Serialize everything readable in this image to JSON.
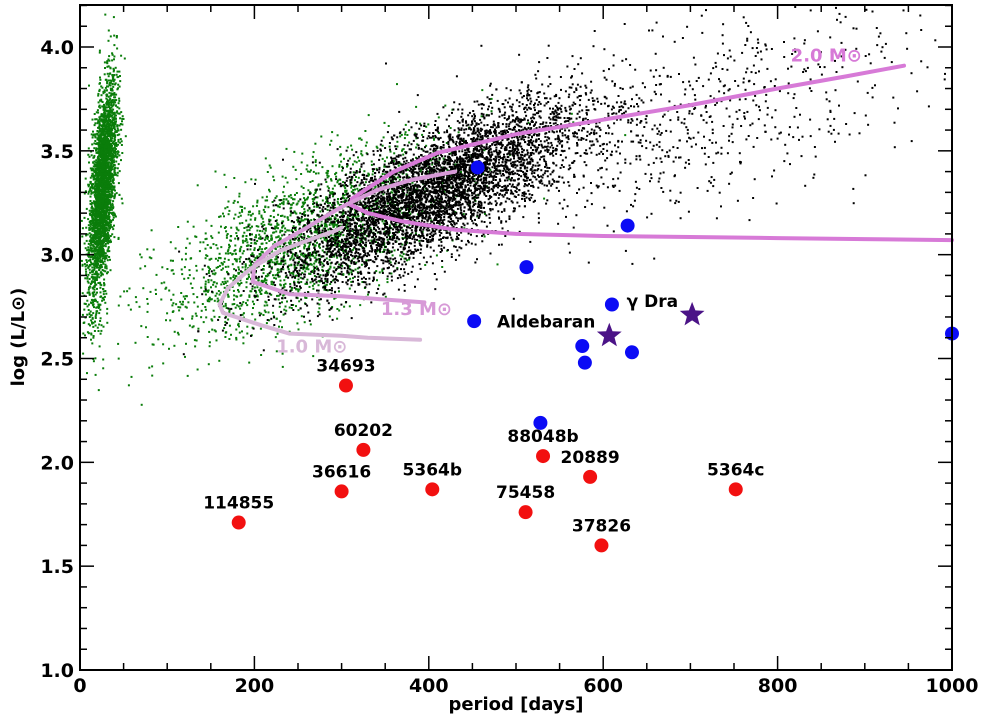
{
  "chart_data": {
    "type": "scatter",
    "xlabel": "period [days]",
    "ylabel": "log (L/L⊙)",
    "xlim": [
      0,
      1000
    ],
    "ylim": [
      1.0,
      4.2
    ],
    "xticks": [
      0,
      200,
      400,
      600,
      800,
      1000
    ],
    "yticks": [
      1.0,
      1.5,
      2.0,
      2.5,
      3.0,
      3.5,
      4.0
    ],
    "x_minor_step": 50,
    "y_minor_step": 0.1,
    "grid": false,
    "colors": {
      "green": "#0a7d0a",
      "black": "#000000",
      "blue": "#0b0bf5",
      "red": "#f21010",
      "star": "#4b1387",
      "track_2_0": "#d77ad7",
      "track_1_3": "#d79ad7",
      "track_1_0": "#d8b8d8"
    },
    "red_points": [
      {
        "label": "114855",
        "x": 182,
        "y": 1.71
      },
      {
        "label": "34693",
        "x": 305,
        "y": 2.37
      },
      {
        "label": "60202",
        "x": 325,
        "y": 2.06
      },
      {
        "label": "36616",
        "x": 300,
        "y": 1.86
      },
      {
        "label": "5364b",
        "x": 404,
        "y": 1.87
      },
      {
        "label": "88048b",
        "x": 531,
        "y": 2.03
      },
      {
        "label": "75458",
        "x": 511,
        "y": 1.76
      },
      {
        "label": "20889",
        "x": 585,
        "y": 1.93
      },
      {
        "label": "37826",
        "x": 598,
        "y": 1.6
      },
      {
        "label": "5364c",
        "x": 752,
        "y": 1.87
      }
    ],
    "blue_points": [
      {
        "x": 456,
        "y": 3.42
      },
      {
        "x": 512,
        "y": 2.94
      },
      {
        "x": 452,
        "y": 2.68
      },
      {
        "x": 610,
        "y": 2.76
      },
      {
        "x": 576,
        "y": 2.56
      },
      {
        "x": 579,
        "y": 2.48
      },
      {
        "x": 633,
        "y": 2.53
      },
      {
        "x": 628,
        "y": 3.14
      },
      {
        "x": 528,
        "y": 2.19
      },
      {
        "x": 1000,
        "y": 2.62
      }
    ],
    "star_points": [
      {
        "label": "Aldebaran",
        "x": 607,
        "y": 2.61
      },
      {
        "label": "γ Dra",
        "x": 702,
        "y": 2.71
      }
    ],
    "tracks": [
      {
        "name": "2.0 M⊙",
        "color_key": "track_2_0",
        "points": [
          [
            1000,
            3.07
          ],
          [
            900,
            3.075
          ],
          [
            800,
            3.08
          ],
          [
            700,
            3.085
          ],
          [
            600,
            3.09
          ],
          [
            500,
            3.1
          ],
          [
            430,
            3.12
          ],
          [
            370,
            3.16
          ],
          [
            330,
            3.2
          ],
          [
            310,
            3.24
          ],
          [
            312,
            3.27
          ],
          [
            330,
            3.32
          ],
          [
            360,
            3.4
          ],
          [
            410,
            3.49
          ],
          [
            500,
            3.58
          ],
          [
            600,
            3.65
          ],
          [
            700,
            3.72
          ],
          [
            800,
            3.8
          ],
          [
            880,
            3.86
          ],
          [
            945,
            3.91
          ]
        ]
      },
      {
        "name": "1.3 M⊙",
        "color_key": "track_1_3",
        "points": [
          [
            395,
            2.77
          ],
          [
            330,
            2.79
          ],
          [
            300,
            2.8
          ],
          [
            240,
            2.81
          ],
          [
            198,
            2.87
          ],
          [
            200,
            2.95
          ],
          [
            222,
            3.04
          ],
          [
            260,
            3.13
          ],
          [
            300,
            3.23
          ],
          [
            340,
            3.31
          ],
          [
            380,
            3.36
          ],
          [
            430,
            3.4
          ]
        ]
      },
      {
        "name": "1.0 M⊙",
        "color_key": "track_1_0",
        "points": [
          [
            390,
            2.59
          ],
          [
            330,
            2.6
          ],
          [
            300,
            2.61
          ],
          [
            240,
            2.62
          ],
          [
            208,
            2.66
          ],
          [
            164,
            2.72
          ],
          [
            160,
            2.76
          ],
          [
            170,
            2.84
          ],
          [
            195,
            2.93
          ],
          [
            230,
            3.02
          ],
          [
            275,
            3.09
          ],
          [
            290,
            3.11
          ],
          [
            300,
            3.13
          ]
        ]
      }
    ],
    "track_labels": [
      {
        "text": "2.0 M⊙",
        "x": 815,
        "y": 3.93,
        "color_key": "track_2_0"
      },
      {
        "text": "1.3 M⊙",
        "x": 345,
        "y": 2.71,
        "color_key": "track_1_3"
      },
      {
        "text": "1.0 M⊙",
        "x": 225,
        "y": 2.53,
        "color_key": "track_1_0"
      }
    ],
    "green_cloud": {
      "n": 5200,
      "components": [
        {
          "weight": 0.58,
          "x_mean": 25,
          "x_sd": 8,
          "y_mean": 3.32,
          "y_sd": 0.22,
          "slope": 0.018
        },
        {
          "weight": 0.42,
          "x_mean": 260,
          "x_sd": 85,
          "y_mean": 3.08,
          "y_sd": 0.17,
          "slope": 0.0018
        }
      ]
    },
    "black_cloud": {
      "n": 6200,
      "components": [
        {
          "weight": 0.88,
          "x_mean": 400,
          "x_sd": 85,
          "y_mean": 3.3,
          "y_sd": 0.14,
          "slope": 0.002
        },
        {
          "weight": 0.12,
          "x_mean": 680,
          "x_sd": 140,
          "y_mean": 3.62,
          "y_sd": 0.22,
          "slope": 0.0012
        }
      ]
    }
  }
}
